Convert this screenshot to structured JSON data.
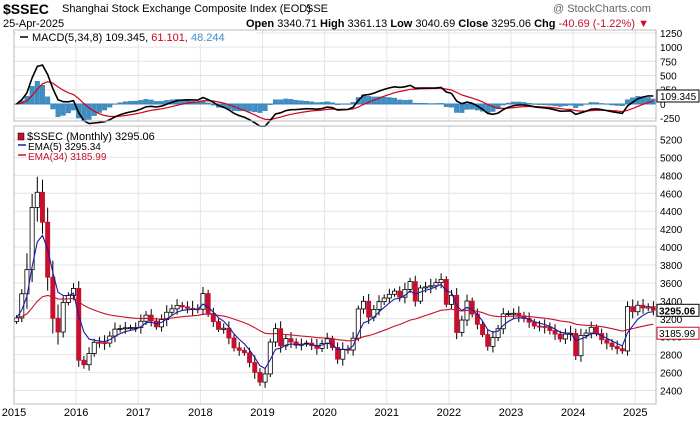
{
  "header": {
    "symbol": "$SSEC",
    "name": "Shanghai Stock Exchange Composite Index (EOD)",
    "exchange": "SSE",
    "date": "25-Apr-2025",
    "open_label": "Open",
    "open": "3340.71",
    "high_label": "High",
    "high": "3361.13",
    "low_label": "Low",
    "low": "3040.69",
    "close_label": "Close",
    "close": "3295.06",
    "chg_label": "Chg",
    "chg": "-40.69 (-1.22%)",
    "watermark": "@ StockCharts.com"
  },
  "chart_data": [
    {
      "type": "line",
      "name": "MACD",
      "legend": "MACD(5,34,8)",
      "values_text": {
        "macd": "109.345",
        "signal": "61.101",
        "hist": "48.244"
      },
      "ylim": [
        -300,
        1300
      ],
      "yticks": [
        1250,
        1000,
        750,
        500,
        250,
        0,
        -250
      ],
      "current_label": "109.345",
      "colors": {
        "macd": "#000000",
        "signal": "#d0021b",
        "hist": "#3d8fc6",
        "zero": "#4a88c8"
      }
    },
    {
      "type": "candlestick",
      "name": "$SSEC (Monthly)",
      "legend": "$SSEC (Monthly) 3295.06",
      "ema5_legend": "EMA(5) 3295.34",
      "ema34_legend": "EMA(34) 3185.99",
      "ylim": [
        2250,
        5350
      ],
      "yticks": [
        5200,
        5000,
        4800,
        4600,
        4400,
        4200,
        4000,
        3800,
        3600,
        3400,
        3200,
        3000,
        2800,
        2600,
        2400
      ],
      "price_labels": [
        "3295.06",
        "3185.99"
      ],
      "xlabels": [
        "2015",
        "2016",
        "2017",
        "2018",
        "2019",
        "2020",
        "2021",
        "2022",
        "2023",
        "2024",
        "2025"
      ],
      "start": "2015-01",
      "anchors": [
        [
          0,
          3210
        ],
        [
          2,
          3748
        ],
        [
          3,
          4442
        ],
        [
          4,
          4611
        ],
        [
          5,
          4277
        ],
        [
          6,
          3664
        ],
        [
          7,
          3206
        ],
        [
          8,
          3053
        ],
        [
          9,
          3383
        ],
        [
          11,
          3539
        ],
        [
          12,
          2738
        ],
        [
          13,
          2688
        ],
        [
          15,
          2938
        ],
        [
          17,
          2930
        ],
        [
          19,
          3085
        ],
        [
          21,
          3100
        ],
        [
          23,
          3104
        ],
        [
          25,
          3241
        ],
        [
          27,
          3110
        ],
        [
          29,
          3273
        ],
        [
          31,
          3349
        ],
        [
          33,
          3317
        ],
        [
          35,
          3307
        ],
        [
          36,
          3481
        ],
        [
          37,
          3259
        ],
        [
          38,
          3169
        ],
        [
          39,
          3082
        ],
        [
          40,
          3095
        ],
        [
          42,
          2876
        ],
        [
          44,
          2821
        ],
        [
          46,
          2603
        ],
        [
          47,
          2494
        ],
        [
          48,
          2585
        ],
        [
          49,
          2941
        ],
        [
          50,
          3090
        ],
        [
          51,
          2898
        ],
        [
          52,
          2979
        ],
        [
          54,
          2905
        ],
        [
          56,
          2929
        ],
        [
          58,
          2870
        ],
        [
          60,
          2977
        ],
        [
          61,
          2880
        ],
        [
          62,
          2750
        ],
        [
          63,
          2860
        ],
        [
          64,
          2852
        ],
        [
          65,
          2984
        ],
        [
          66,
          3310
        ],
        [
          67,
          3395
        ],
        [
          68,
          3218
        ],
        [
          70,
          3391
        ],
        [
          72,
          3473
        ],
        [
          73,
          3509
        ],
        [
          74,
          3441
        ],
        [
          76,
          3615
        ],
        [
          77,
          3397
        ],
        [
          78,
          3544
        ],
        [
          80,
          3568
        ],
        [
          82,
          3639
        ],
        [
          83,
          3361
        ],
        [
          84,
          3462
        ],
        [
          85,
          3047
        ],
        [
          86,
          3186
        ],
        [
          87,
          3398
        ],
        [
          88,
          3253
        ],
        [
          90,
          3024
        ],
        [
          91,
          2893
        ],
        [
          93,
          3089
        ],
        [
          94,
          3255
        ],
        [
          96,
          3262
        ],
        [
          98,
          3204
        ],
        [
          100,
          3119
        ],
        [
          102,
          3110
        ],
        [
          104,
          3029
        ],
        [
          105,
          2975
        ],
        [
          106,
          3029
        ],
        [
          107,
          3038
        ],
        [
          108,
          2788
        ],
        [
          109,
          3015
        ],
        [
          110,
          3041
        ],
        [
          111,
          3105
        ],
        [
          113,
          2967
        ],
        [
          115,
          2891
        ],
        [
          117,
          2842
        ],
        [
          118,
          3336
        ],
        [
          119,
          3279
        ],
        [
          120,
          3351
        ],
        [
          121,
          3321
        ],
        [
          122,
          3335
        ],
        [
          123,
          3295
        ]
      ],
      "colors": {
        "up": "#ffffff",
        "down": "#c8102e",
        "ema5": "#1a1aa0",
        "ema34": "#c8102e"
      }
    }
  ]
}
